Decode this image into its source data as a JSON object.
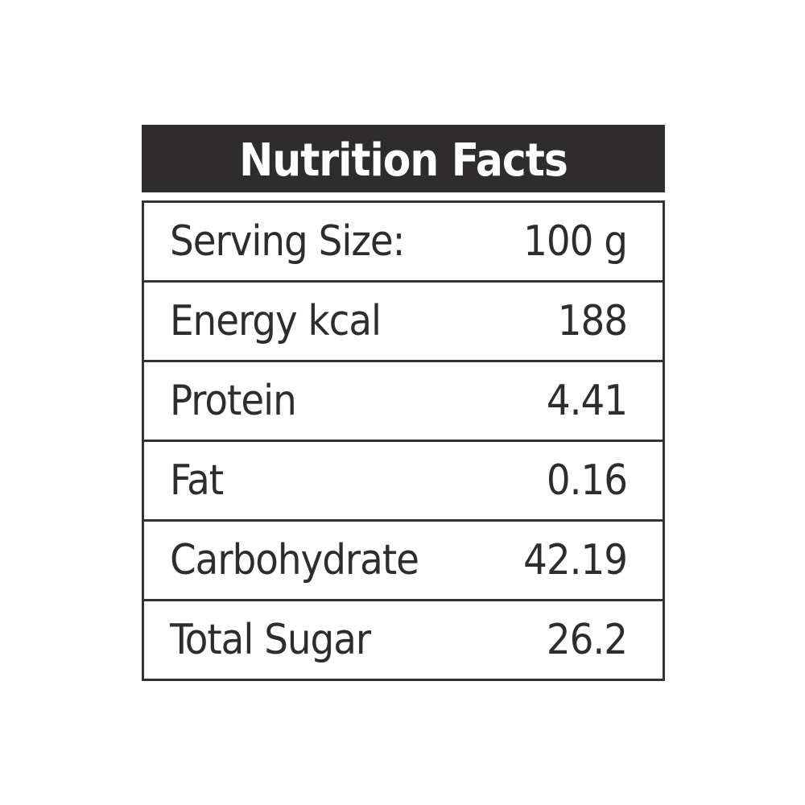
{
  "header": {
    "title": "Nutrition Facts"
  },
  "table": {
    "rows": [
      [
        "Serving Size:",
        "100 g"
      ],
      [
        "Energy kcal",
        "188"
      ],
      [
        "Protein",
        "4.41"
      ],
      [
        "Fat",
        "0.16"
      ],
      [
        "Carbohydrate",
        "42.19"
      ],
      [
        "Total Sugar",
        "26.2"
      ]
    ]
  }
}
